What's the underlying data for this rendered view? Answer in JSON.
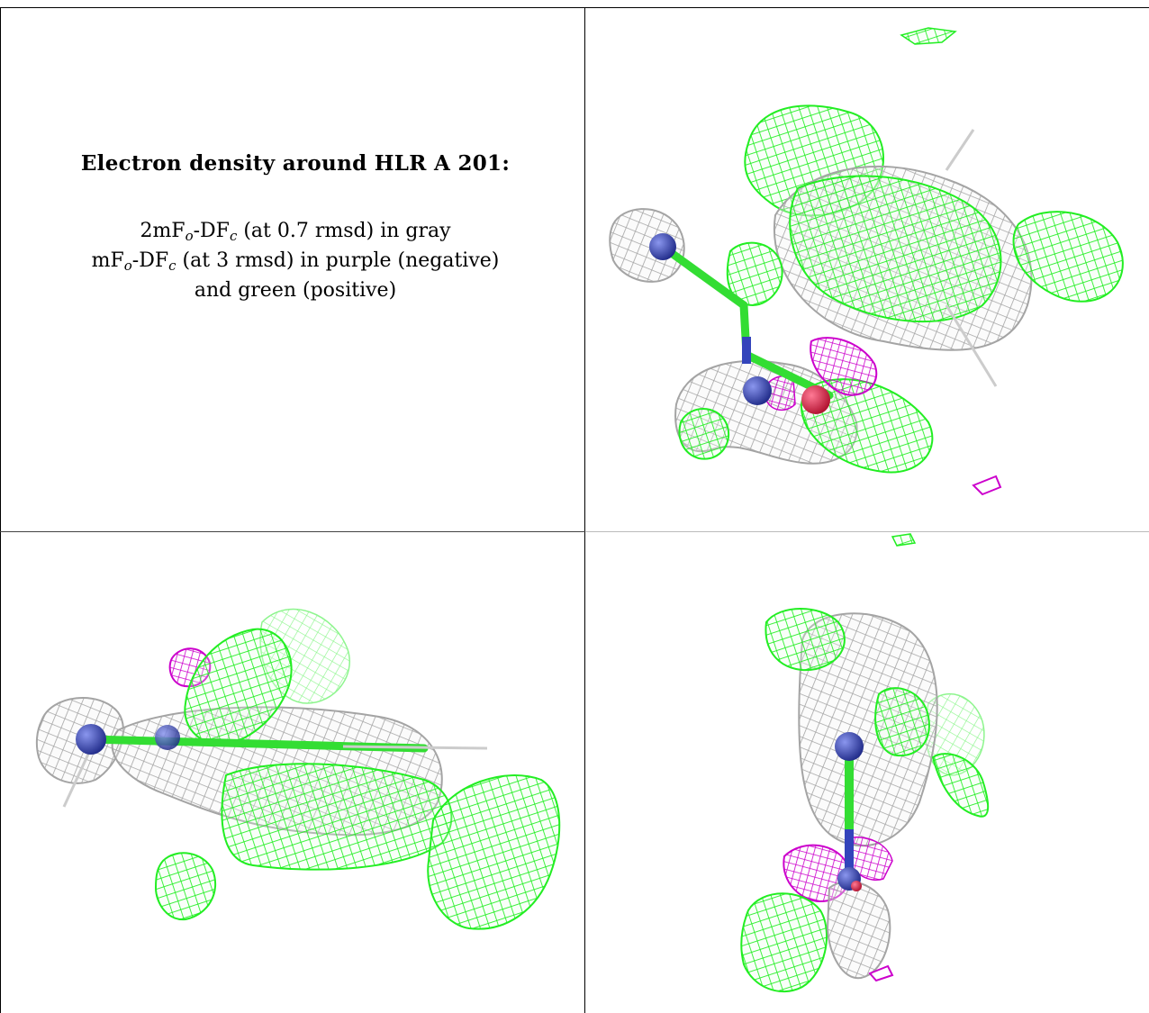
{
  "caption": {
    "title": "Electron density around HLR A 201:",
    "line1": {
      "a": "2mF",
      "sub1": "o",
      "b": "-DF",
      "sub2": "c",
      "c": " (at 0.7 rmsd) in gray"
    },
    "line2": {
      "a": "mF",
      "sub1": "o",
      "b": "-DF",
      "sub2": "c",
      "c": " (at 3 rmsd) in purple (negative)"
    },
    "line3": "and green (positive)"
  },
  "colors": {
    "map_2fofc": "#a8a8a8",
    "map_fofc_positive": "#22ee22",
    "map_fofc_negative": "#cc00cc",
    "atom_nitrogen": "#3344bb",
    "atom_oxygen": "#dd2244",
    "atom_carbon": "#33dd33"
  },
  "panels": [
    {
      "name": "view-top-right",
      "content": "density map of ligand viewed from above"
    },
    {
      "name": "view-bottom-left",
      "content": "density map of ligand viewed from side"
    },
    {
      "name": "view-bottom-right",
      "content": "density map of ligand viewed end-on"
    }
  ]
}
